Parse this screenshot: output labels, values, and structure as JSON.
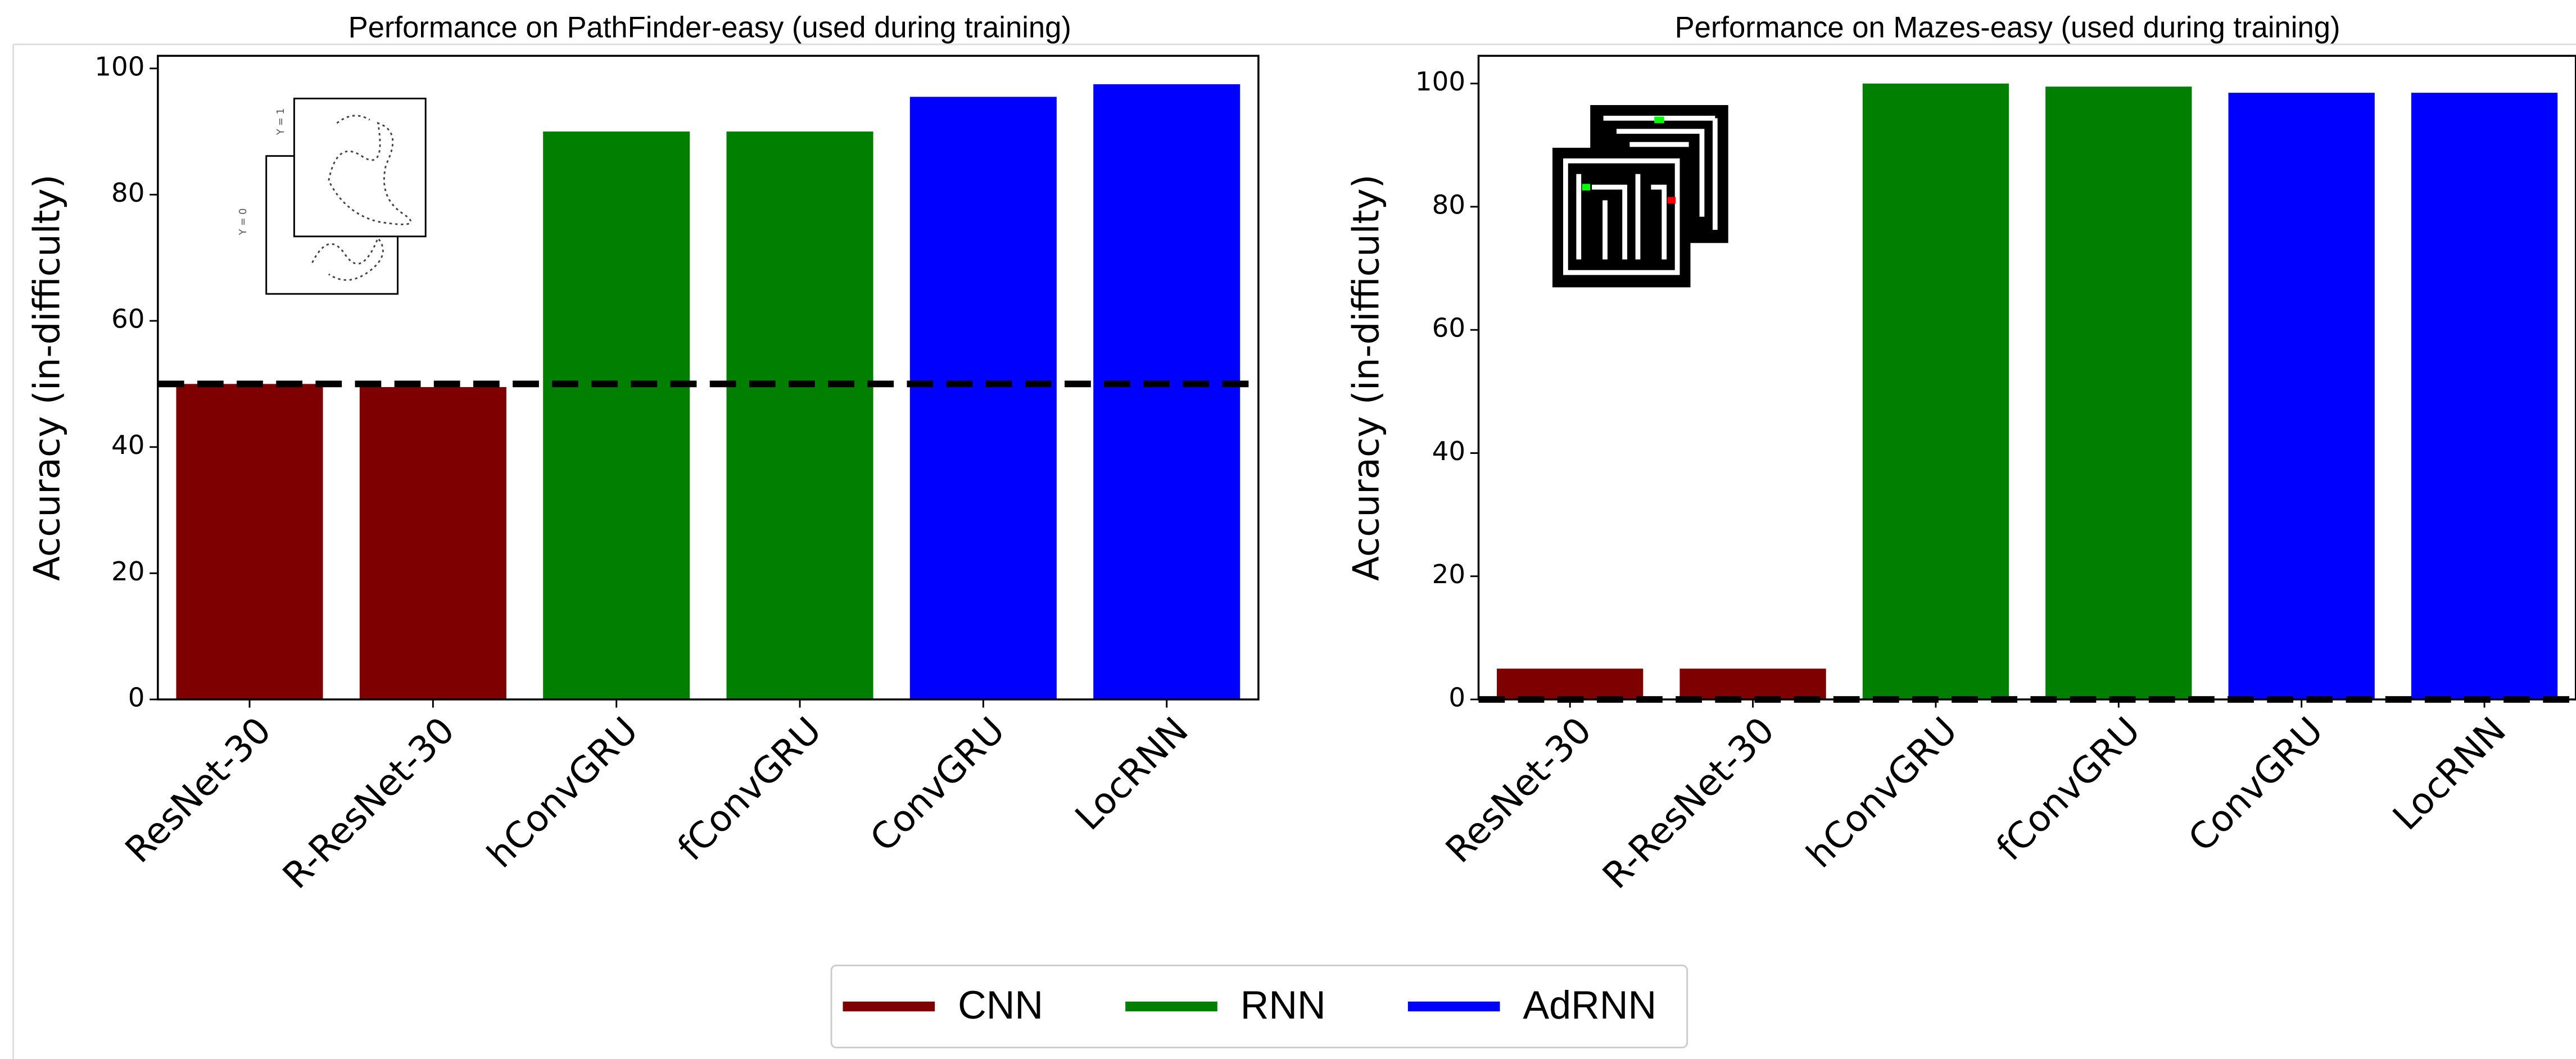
{
  "chart_data": [
    {
      "type": "bar",
      "title": "Performance on PathFinder-easy (used during training)",
      "y_label": "Accuracy (in-difficulty)",
      "categories": [
        "ResNet-30",
        "R-ResNet-30",
        "hConvGRU",
        "fConvGRU",
        "ConvGRU",
        "LocRNN"
      ],
      "values": [
        50,
        49.5,
        90,
        90,
        95.5,
        97.5
      ],
      "colors": [
        "#7f0000",
        "#7f0000",
        "#007f00",
        "#007f00",
        "#0000ff",
        "#0000ff"
      ],
      "ylim": [
        0,
        102
      ],
      "yticks": [
        0,
        20,
        40,
        60,
        80,
        100
      ],
      "reference_line": 50,
      "inset_labels": [
        "Y = 1",
        "Y = 0"
      ]
    },
    {
      "type": "bar",
      "title": "Performance on Mazes-easy (used during training)",
      "y_label": "Accuracy (in-difficulty)",
      "categories": [
        "ResNet-30",
        "R-ResNet-30",
        "hConvGRU",
        "fConvGRU",
        "ConvGRU",
        "LocRNN"
      ],
      "values": [
        5,
        5,
        100,
        99.5,
        98.5,
        98.5
      ],
      "colors": [
        "#7f0000",
        "#7f0000",
        "#007f00",
        "#007f00",
        "#0000ff",
        "#0000ff"
      ],
      "ylim": [
        0,
        104.5
      ],
      "yticks": [
        0,
        20,
        40,
        60,
        80,
        100
      ],
      "reference_line": 0
    }
  ],
  "legend": {
    "entries": [
      {
        "name": "CNN",
        "color": "#7f0000"
      },
      {
        "name": "RNN",
        "color": "#007f00"
      },
      {
        "name": "AdRNN",
        "color": "#0000ff"
      }
    ],
    "position": "bottom-center"
  }
}
